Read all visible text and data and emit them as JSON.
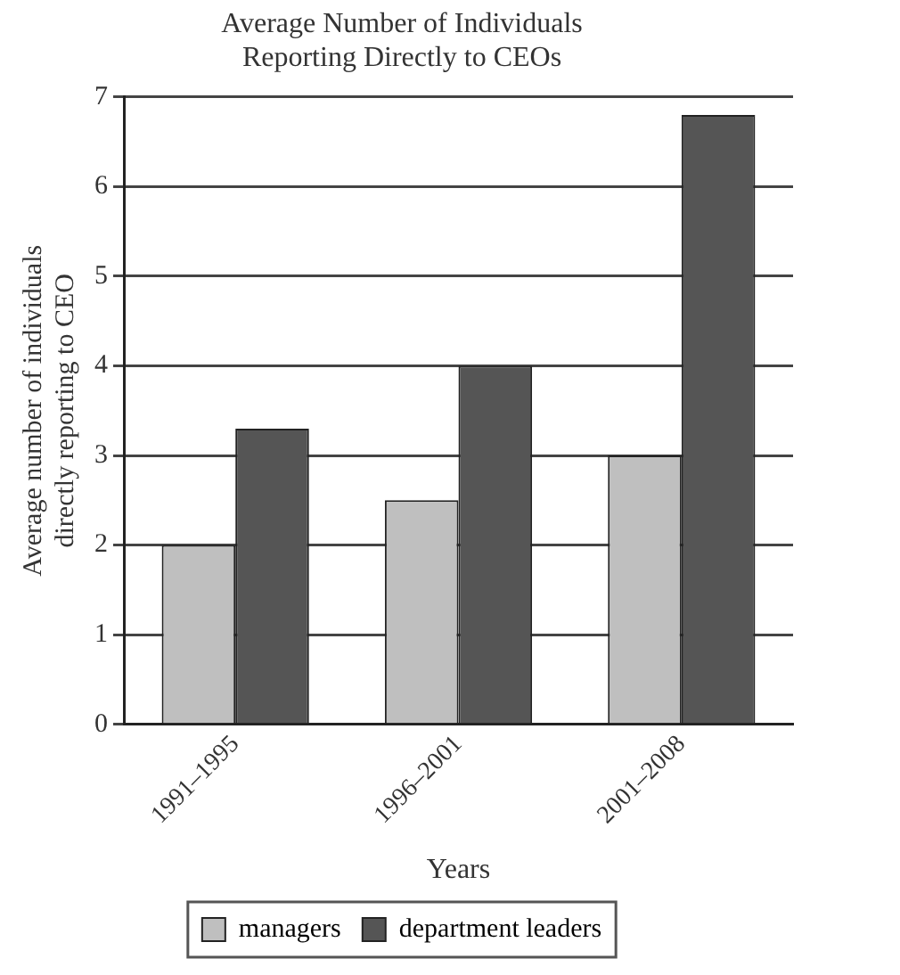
{
  "chart_data": {
    "type": "bar",
    "title": "Average Number of Individuals\nReporting Directly to CEOs",
    "xlabel": "Years",
    "ylabel": "Average number of individuals\ndirectly reporting to CEO",
    "categories": [
      "1991–1995",
      "1996–2001",
      "2001–2008"
    ],
    "series": [
      {
        "name": "managers",
        "color": "#bfbfbf",
        "values": [
          2,
          2.5,
          3
        ]
      },
      {
        "name": "department leaders",
        "color": "#555555",
        "values": [
          3.3,
          4,
          6.8
        ]
      }
    ],
    "ylim": [
      0,
      7
    ],
    "yticks": [
      0,
      1,
      2,
      3,
      4,
      5,
      6,
      7
    ],
    "grid": "y",
    "legend": "bottom"
  }
}
